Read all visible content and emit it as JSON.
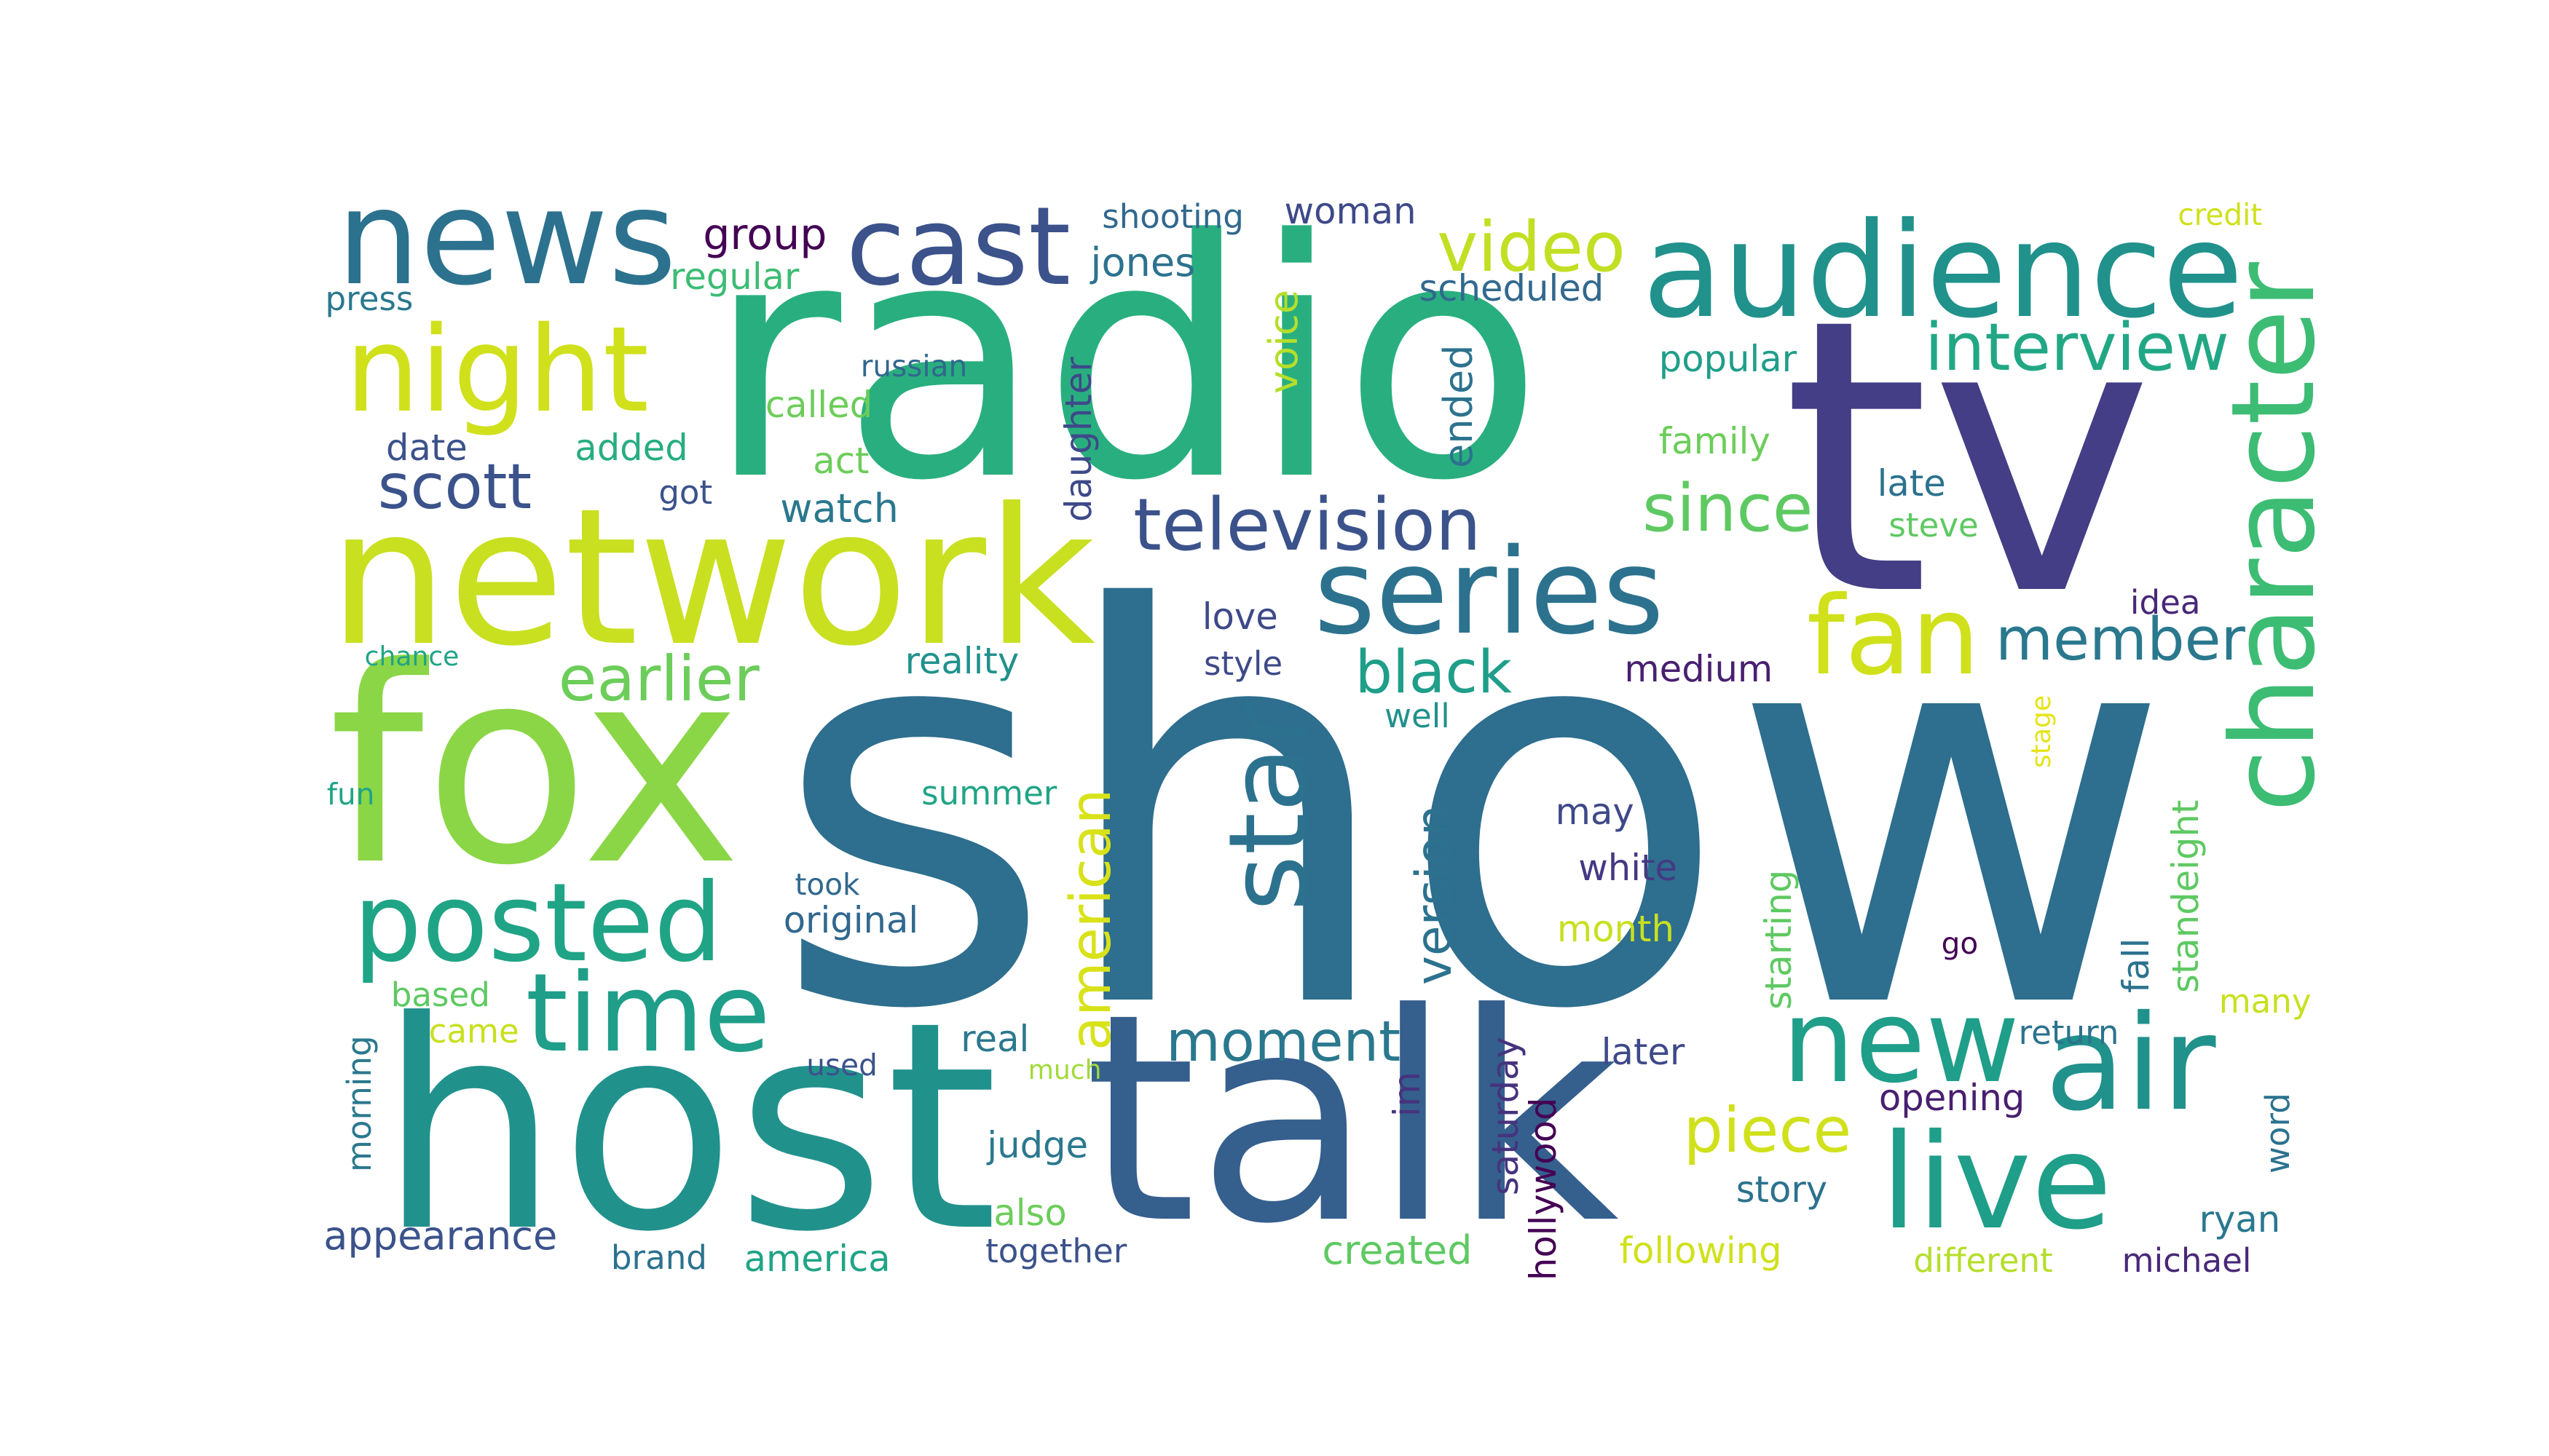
{
  "words": [
    {
      "text": "show",
      "color": "#2e6e8e"
    },
    {
      "text": "radio",
      "color": "#29af7f"
    },
    {
      "text": "tv",
      "color": "#433e85"
    },
    {
      "text": "host",
      "color": "#21918c"
    },
    {
      "text": "talk",
      "color": "#355f8d"
    },
    {
      "text": "fox",
      "color": "#8bd646"
    },
    {
      "text": "network",
      "color": "#c8e020"
    },
    {
      "text": "news",
      "color": "#2c728e"
    },
    {
      "text": "audience",
      "color": "#21918c"
    },
    {
      "text": "cast",
      "color": "#3b528b"
    },
    {
      "text": "night",
      "color": "#d0e11c"
    },
    {
      "text": "posted",
      "color": "#20a486"
    },
    {
      "text": "time",
      "color": "#1f9e89"
    },
    {
      "text": "series",
      "color": "#2c728e"
    },
    {
      "text": "character",
      "color": "#3dbc74"
    },
    {
      "text": "air",
      "color": "#21918c"
    },
    {
      "text": "live",
      "color": "#1f9e89"
    },
    {
      "text": "new",
      "color": "#1f9e89"
    },
    {
      "text": "star",
      "color": "#2c728e"
    },
    {
      "text": "fan",
      "color": "#d0e11c"
    },
    {
      "text": "video",
      "color": "#c2df23"
    },
    {
      "text": "interview",
      "color": "#22a785"
    },
    {
      "text": "television",
      "color": "#3b528b"
    },
    {
      "text": "scott",
      "color": "#3b528b"
    },
    {
      "text": "earlier",
      "color": "#6ccd5a"
    },
    {
      "text": "since",
      "color": "#5ec962"
    },
    {
      "text": "member",
      "color": "#2a788e"
    },
    {
      "text": "black",
      "color": "#1f9e89"
    },
    {
      "text": "american",
      "color": "#d8e219"
    },
    {
      "text": "moment",
      "color": "#2a788e"
    },
    {
      "text": "piece",
      "color": "#d0e11c"
    },
    {
      "text": "version",
      "color": "#2c728e"
    },
    {
      "text": "group",
      "color": "#440154"
    },
    {
      "text": "shooting",
      "color": "#31688e"
    },
    {
      "text": "woman",
      "color": "#3e4989"
    },
    {
      "text": "jones",
      "color": "#2c728e"
    },
    {
      "text": "regular",
      "color": "#3dbc74"
    },
    {
      "text": "press",
      "color": "#2a788e"
    },
    {
      "text": "voice",
      "color": "#b5de2b"
    },
    {
      "text": "scheduled",
      "color": "#31688e"
    },
    {
      "text": "credit",
      "color": "#d0e11c"
    },
    {
      "text": "russian",
      "color": "#31688e"
    },
    {
      "text": "daughter",
      "color": "#3e4989"
    },
    {
      "text": "called",
      "color": "#6ccd5a"
    },
    {
      "text": "ended",
      "color": "#2c728e"
    },
    {
      "text": "popular",
      "color": "#1f9e89"
    },
    {
      "text": "date",
      "color": "#3b528b"
    },
    {
      "text": "added",
      "color": "#27ad81"
    },
    {
      "text": "act",
      "color": "#6ccd5a"
    },
    {
      "text": "family",
      "color": "#6ccd5a"
    },
    {
      "text": "got",
      "color": "#3b528b"
    },
    {
      "text": "watch",
      "color": "#2a788e"
    },
    {
      "text": "late",
      "color": "#2c728e"
    },
    {
      "text": "steve",
      "color": "#5ec962"
    },
    {
      "text": "love",
      "color": "#3e4989"
    },
    {
      "text": "idea",
      "color": "#482878"
    },
    {
      "text": "chance",
      "color": "#20a486"
    },
    {
      "text": "reality",
      "color": "#21918c"
    },
    {
      "text": "style",
      "color": "#3e4989"
    },
    {
      "text": "medium",
      "color": "#481f70"
    },
    {
      "text": "well",
      "color": "#21918c"
    },
    {
      "text": "stage",
      "color": "#e5e419"
    },
    {
      "text": "fun",
      "color": "#20a486"
    },
    {
      "text": "summer",
      "color": "#20a486"
    },
    {
      "text": "may",
      "color": "#3e4989"
    },
    {
      "text": "white",
      "color": "#443983"
    },
    {
      "text": "standeight",
      "color": "#5ec962"
    },
    {
      "text": "took",
      "color": "#31688e"
    },
    {
      "text": "original",
      "color": "#31688e"
    },
    {
      "text": "starting",
      "color": "#5ec962"
    },
    {
      "text": "month",
      "color": "#c8e020"
    },
    {
      "text": "go",
      "color": "#440154"
    },
    {
      "text": "fall",
      "color": "#2c728e"
    },
    {
      "text": "based",
      "color": "#5ec962"
    },
    {
      "text": "many",
      "color": "#c8e020"
    },
    {
      "text": "came",
      "color": "#c8e020"
    },
    {
      "text": "real",
      "color": "#2a788e"
    },
    {
      "text": "return",
      "color": "#2c728e"
    },
    {
      "text": "morning",
      "color": "#2a788e"
    },
    {
      "text": "used",
      "color": "#3b528b"
    },
    {
      "text": "much",
      "color": "#a0da39"
    },
    {
      "text": "saturday",
      "color": "#46337e"
    },
    {
      "text": "im",
      "color": "#46337e"
    },
    {
      "text": "later",
      "color": "#3e4989"
    },
    {
      "text": "hollywood",
      "color": "#440154"
    },
    {
      "text": "opening",
      "color": "#481f70"
    },
    {
      "text": "word",
      "color": "#2c728e"
    },
    {
      "text": "judge",
      "color": "#2a788e"
    },
    {
      "text": "story",
      "color": "#2c728e"
    },
    {
      "text": "appearance",
      "color": "#3b528b"
    },
    {
      "text": "also",
      "color": "#6ccd5a"
    },
    {
      "text": "ryan",
      "color": "#2a788e"
    },
    {
      "text": "brand",
      "color": "#2c728e"
    },
    {
      "text": "america",
      "color": "#20a486"
    },
    {
      "text": "together",
      "color": "#3b528b"
    },
    {
      "text": "created",
      "color": "#5ec962"
    },
    {
      "text": "following",
      "color": "#d0e11c"
    },
    {
      "text": "different",
      "color": "#b5de2b"
    },
    {
      "text": "michael",
      "color": "#482878"
    }
  ]
}
